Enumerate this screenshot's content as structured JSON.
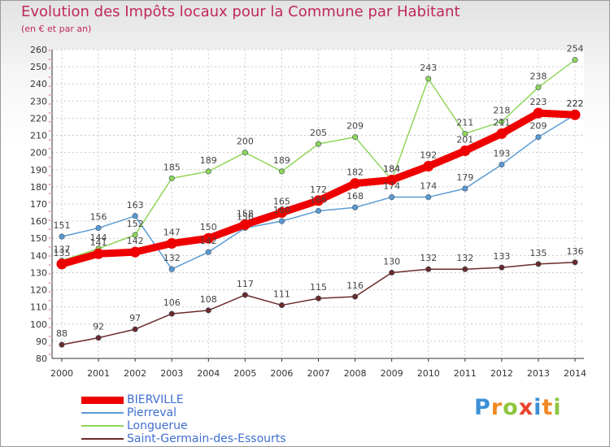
{
  "chart_data": {
    "type": "line",
    "title": "Evolution des Impôts locaux pour la Commune par Habitant",
    "subtitle": "(en € et par an)",
    "x": [
      2000,
      2001,
      2002,
      2003,
      2004,
      2005,
      2006,
      2007,
      2008,
      2009,
      2010,
      2011,
      2012,
      2013,
      2014
    ],
    "xlabel": "",
    "ylabel": "",
    "ylim": [
      80,
      260
    ],
    "yticks": [
      80,
      90,
      100,
      110,
      120,
      130,
      140,
      150,
      160,
      170,
      180,
      190,
      200,
      210,
      220,
      230,
      240,
      250,
      260
    ],
    "grid": true,
    "legend_position": "bottom-left",
    "series": [
      {
        "name": "Pierreval",
        "color": "#5b9bd5",
        "values": [
          151,
          156,
          163,
          132,
          142,
          156,
          160,
          166,
          168,
          174,
          174,
          179,
          193,
          209,
          222
        ]
      },
      {
        "name": "Longuerue",
        "color": "#8fd65a",
        "values": [
          137,
          144,
          152,
          185,
          189,
          200,
          189,
          205,
          209,
          184,
          243,
          211,
          218,
          238,
          254
        ]
      },
      {
        "name": "Saint-Germain-des-Essourts",
        "color": "#6b2a2a",
        "values": [
          88,
          92,
          97,
          106,
          108,
          117,
          111,
          115,
          116,
          130,
          132,
          132,
          133,
          135,
          136
        ]
      },
      {
        "name": "BIERVILLE",
        "color": "#ee0000",
        "values": [
          135,
          141,
          142,
          147,
          150,
          158,
          165,
          172,
          182,
          184,
          192,
          201,
          211,
          223,
          222
        ]
      }
    ]
  },
  "legend": [
    {
      "label": "BIERVILLE",
      "color": "#ee0000",
      "thick": true
    },
    {
      "label": "Pierreval",
      "color": "#5b9bd5",
      "thick": false
    },
    {
      "label": "Longuerue",
      "color": "#8fd65a",
      "thick": false
    },
    {
      "label": "Saint-Germain-des-Essourts",
      "color": "#6b2a2a",
      "thick": false
    }
  ],
  "logo": {
    "letters": [
      "P",
      "r",
      "o",
      "x",
      "i",
      "t",
      "i"
    ],
    "colors": [
      "#3d8fd6",
      "#f08a24",
      "#8cc63f",
      "#e8432e",
      "#3d8fd6",
      "#f08a24",
      "#8cc63f"
    ]
  }
}
